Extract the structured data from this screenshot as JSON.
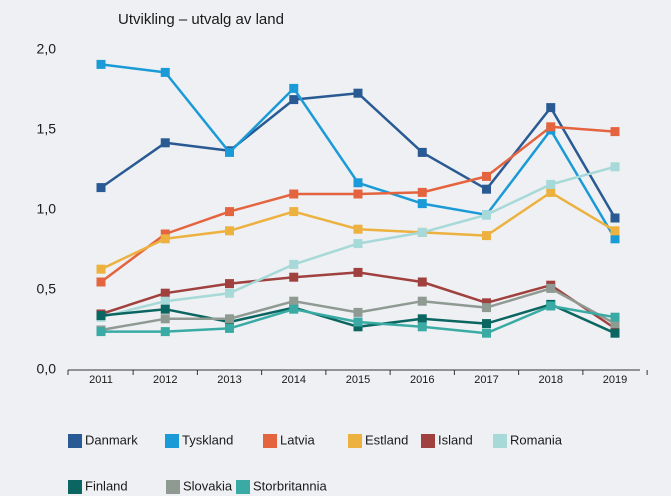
{
  "chart_data": {
    "type": "line",
    "title": "Utvikling – utvalg av land",
    "categories": [
      "2011",
      "2012",
      "2013",
      "2014",
      "2015",
      "2016",
      "2017",
      "2018",
      "2019"
    ],
    "ylim": [
      0,
      2
    ],
    "yticks": [
      {
        "value": 0,
        "label": "0,0"
      },
      {
        "value": 0.5,
        "label": "0,5"
      },
      {
        "value": 1,
        "label": "1,0"
      },
      {
        "value": 1.5,
        "label": "1,5"
      },
      {
        "value": 2,
        "label": "2,0"
      }
    ],
    "grid": false,
    "series": [
      {
        "name": "Danmark",
        "color": "#2a5a93",
        "values": [
          1.14,
          1.42,
          1.37,
          1.69,
          1.73,
          1.36,
          1.13,
          1.64,
          0.95
        ]
      },
      {
        "name": "Tyskland",
        "color": "#1a9ad6",
        "values": [
          1.91,
          1.86,
          1.36,
          1.76,
          1.17,
          1.04,
          0.97,
          1.5,
          0.82
        ]
      },
      {
        "name": "Latvia",
        "color": "#e4643f",
        "values": [
          0.55,
          0.85,
          0.99,
          1.1,
          1.1,
          1.11,
          1.21,
          1.52,
          1.49
        ]
      },
      {
        "name": "Estland",
        "color": "#edb13f",
        "values": [
          0.63,
          0.82,
          0.87,
          0.99,
          0.88,
          0.86,
          0.84,
          1.11,
          0.87
        ]
      },
      {
        "name": "Island",
        "color": "#a0413f",
        "values": [
          0.35,
          0.48,
          0.54,
          0.58,
          0.61,
          0.55,
          0.42,
          0.53,
          0.26
        ]
      },
      {
        "name": "Romania",
        "color": "#a6d9d8",
        "values": [
          0.33,
          0.43,
          0.48,
          0.66,
          0.79,
          0.86,
          0.97,
          1.16,
          1.27
        ]
      },
      {
        "name": "Finland",
        "color": "#0b6661",
        "values": [
          0.34,
          0.38,
          0.3,
          0.39,
          0.27,
          0.32,
          0.29,
          0.41,
          0.23
        ]
      },
      {
        "name": "Slovakia",
        "color": "#8f9a93",
        "values": [
          0.25,
          0.32,
          0.32,
          0.43,
          0.36,
          0.43,
          0.39,
          0.51,
          0.29
        ]
      },
      {
        "name": "Storbritannia",
        "color": "#3aaba4",
        "values": [
          0.24,
          0.24,
          0.26,
          0.38,
          0.3,
          0.27,
          0.23,
          0.4,
          0.33
        ]
      }
    ]
  }
}
